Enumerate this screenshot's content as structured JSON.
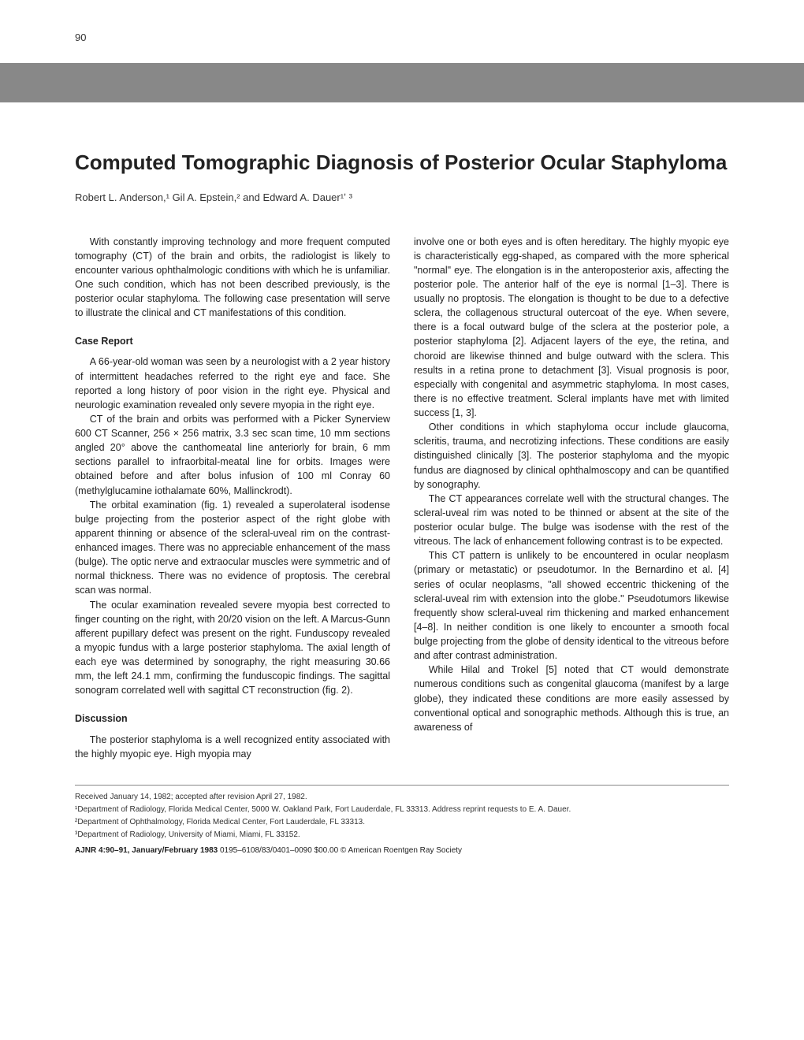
{
  "page_number": "90",
  "title": "Computed Tomographic Diagnosis of Posterior Ocular Staphyloma",
  "authors": "Robert L. Anderson,¹ Gil A. Epstein,² and Edward A. Dauer¹ʼ ³",
  "colors": {
    "background": "#ffffff",
    "gray_bar": "#888888",
    "text": "#222222",
    "footnote_border": "#888888"
  },
  "left_column": {
    "intro": "With constantly improving technology and more frequent computed tomography (CT) of the brain and orbits, the radiologist is likely to encounter various ophthalmologic conditions with which he is unfamiliar. One such condition, which has not been described previously, is the posterior ocular staphyloma. The following case presentation will serve to illustrate the clinical and CT manifestations of this condition.",
    "case_heading": "Case Report",
    "case_p1": "A 66-year-old woman was seen by a neurologist with a 2 year history of intermittent headaches referred to the right eye and face. She reported a long history of poor vision in the right eye. Physical and neurologic examination revealed only severe myopia in the right eye.",
    "case_p2": "CT of the brain and orbits was performed with a Picker Synerview 600 CT Scanner, 256 × 256 matrix, 3.3 sec scan time, 10 mm sections angled 20° above the canthomeatal line anteriorly for brain, 6 mm sections parallel to infraorbital-meatal line for orbits. Images were obtained before and after bolus infusion of 100 ml Conray 60 (methylglucamine iothalamate 60%, Mallinckrodt).",
    "case_p3": "The orbital examination (fig. 1) revealed a superolateral isodense bulge projecting from the posterior aspect of the right globe with apparent thinning or absence of the scleral-uveal rim on the contrast-enhanced images. There was no appreciable enhancement of the mass (bulge). The optic nerve and extraocular muscles were symmetric and of normal thickness. There was no evidence of proptosis. The cerebral scan was normal.",
    "case_p4": "The ocular examination revealed severe myopia best corrected to finger counting on the right, with 20/20 vision on the left. A Marcus-Gunn afferent pupillary defect was present on the right. Funduscopy revealed a myopic fundus with a large posterior staphyloma. The axial length of each eye was determined by sonography, the right measuring 30.66 mm, the left 24.1 mm, confirming the funduscopic findings. The sagittal sonogram correlated well with sagittal CT reconstruction (fig. 2).",
    "discussion_heading": "Discussion",
    "discussion_p1": "The posterior staphyloma is a well recognized entity associated with the highly myopic eye. High myopia may"
  },
  "right_column": {
    "p1": "involve one or both eyes and is often hereditary. The highly myopic eye is characteristically egg-shaped, as compared with the more spherical \"normal\" eye. The elongation is in the anteroposterior axis, affecting the posterior pole. The anterior half of the eye is normal [1–3]. There is usually no proptosis. The elongation is thought to be due to a defective sclera, the collagenous structural outercoat of the eye. When severe, there is a focal outward bulge of the sclera at the posterior pole, a posterior staphyloma [2]. Adjacent layers of the eye, the retina, and choroid are likewise thinned and bulge outward with the sclera. This results in a retina prone to detachment [3]. Visual prognosis is poor, especially with congenital and asymmetric staphyloma. In most cases, there is no effective treatment. Scleral implants have met with limited success [1, 3].",
    "p2": "Other conditions in which staphyloma occur include glaucoma, scleritis, trauma, and necrotizing infections. These conditions are easily distinguished clinically [3]. The posterior staphyloma and the myopic fundus are diagnosed by clinical ophthalmoscopy and can be quantified by sonography.",
    "p3": "The CT appearances correlate well with the structural changes. The scleral-uveal rim was noted to be thinned or absent at the site of the posterior ocular bulge. The bulge was isodense with the rest of the vitreous. The lack of enhancement following contrast is to be expected.",
    "p4": "This CT pattern is unlikely to be encountered in ocular neoplasm (primary or metastatic) or pseudotumor. In the Bernardino et al. [4] series of ocular neoplasms, \"all showed eccentric thickening of the scleral-uveal rim with extension into the globe.\" Pseudotumors likewise frequently show scleral-uveal rim thickening and marked enhancement [4–8]. In neither condition is one likely to encounter a smooth focal bulge projecting from the globe of density identical to the vitreous before and after contrast administration.",
    "p5": "While Hilal and Trokel [5] noted that CT would demonstrate numerous conditions such as congenital glaucoma (manifest by a large globe), they indicated these conditions are more easily assessed by conventional optical and sonographic methods. Although this is true, an awareness of"
  },
  "footnotes": {
    "received": "Received January 14, 1982; accepted after revision April 27, 1982.",
    "dept1": "¹Department of Radiology, Florida Medical Center, 5000 W. Oakland Park, Fort Lauderdale, FL 33313. Address reprint requests to E. A. Dauer.",
    "dept2": "²Department of Ophthalmology, Florida Medical Center, Fort Lauderdale, FL 33313.",
    "dept3": "³Department of Radiology, University of Miami, Miami, FL 33152.",
    "journal": "AJNR 4:90–91, January/February 1983 0195–6108/83/0401–0090 $00.00 © American Roentgen Ray Society"
  }
}
